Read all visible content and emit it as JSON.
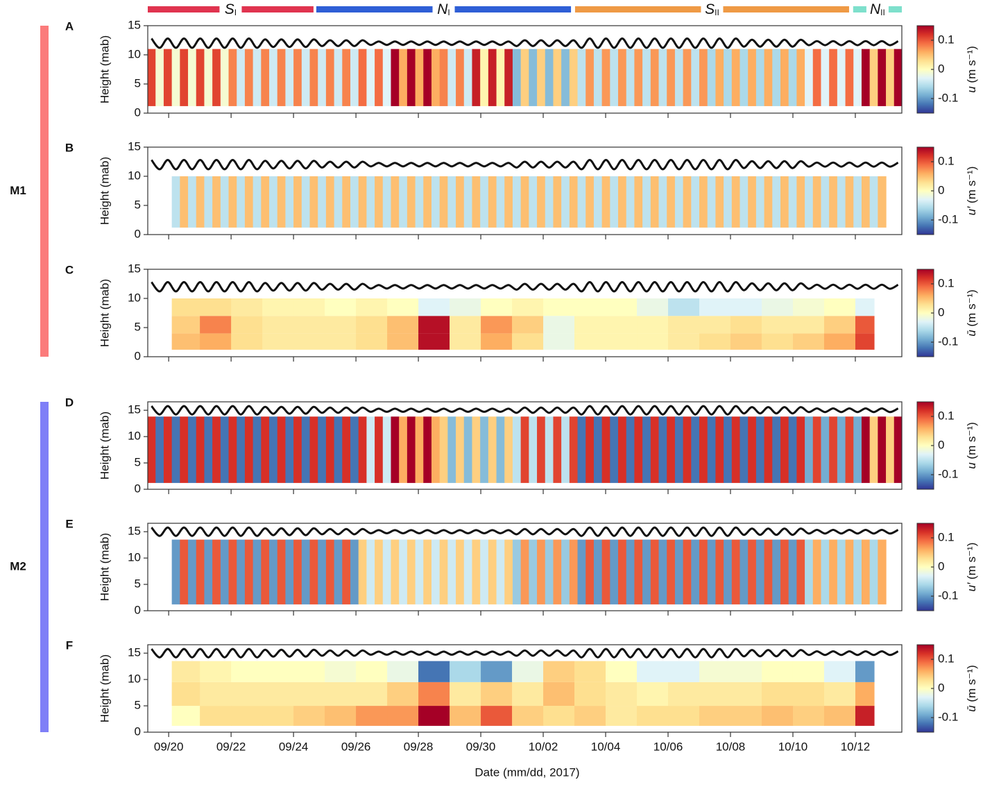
{
  "time": [
    -0.55,
    -0.29,
    -0.03,
    0.23,
    0.49,
    0.75,
    1.01,
    1.27,
    1.53,
    1.79,
    2.05,
    2.31,
    2.57,
    2.83,
    3.09,
    3.35,
    3.61,
    3.87,
    4.13,
    4.39,
    4.65,
    4.91,
    5.17,
    5.43,
    5.69,
    5.95,
    6.21,
    6.47,
    6.73,
    6.99,
    7.25,
    7.51,
    7.77,
    8.03,
    8.29,
    8.55,
    8.81,
    9.07,
    9.33,
    9.59,
    9.85,
    10.11,
    10.37,
    10.63,
    10.89,
    11.15,
    11.41,
    11.67,
    11.93,
    12.19,
    12.45,
    12.71,
    12.97,
    13.23,
    13.49,
    13.75,
    14.01,
    14.27,
    14.53,
    14.79,
    15.05,
    15.31,
    15.57,
    15.83,
    16.09,
    16.35,
    16.61,
    16.87,
    17.13,
    17.39,
    17.65,
    17.91,
    18.17,
    18.43,
    18.69,
    18.95,
    19.21,
    19.47,
    19.73,
    19.99,
    20.25,
    20.51,
    20.77,
    21.03,
    21.29,
    21.55,
    21.81,
    22.07,
    22.33,
    22.59,
    22.85,
    23.11,
    23.37
  ],
  "xlim": [
    -0.67,
    23.49
  ],
  "xticks": [
    {
      "value": 0,
      "label": "09/20"
    },
    {
      "value": 2,
      "label": "09/22"
    },
    {
      "value": 4,
      "label": "09/24"
    },
    {
      "value": 6,
      "label": "09/26"
    },
    {
      "value": 8,
      "label": "09/28"
    },
    {
      "value": 10,
      "label": "09/30"
    },
    {
      "value": 12,
      "label": "10/02"
    },
    {
      "value": 14,
      "label": "10/04"
    },
    {
      "value": 16,
      "label": "10/06"
    },
    {
      "value": 18,
      "label": "10/08"
    },
    {
      "value": 20,
      "label": "10/10"
    },
    {
      "value": 22,
      "label": "10/12"
    }
  ],
  "xlabel": "Date (mm/dd, 2017)",
  "clim": [
    -0.15,
    0.15
  ],
  "cticks": [
    -0.1,
    0,
    0.1
  ],
  "colormap": [
    "#313695",
    "#4575b4",
    "#74add1",
    "#abd9e9",
    "#e0f3f8",
    "#ffffbf",
    "#fee090",
    "#fdae61",
    "#f46d43",
    "#d73027",
    "#a50026"
  ],
  "tide_color": "#111111",
  "phases": [
    {
      "label": "S",
      "sub": "I",
      "start": -0.67,
      "end": 4.64,
      "color": "#e0344f"
    },
    {
      "label": "N",
      "sub": "I",
      "start": 4.73,
      "end": 12.89,
      "color": "#2f5fd6"
    },
    {
      "label": "S",
      "sub": "II",
      "start": 13.02,
      "end": 21.8,
      "color": "#ef9a45"
    },
    {
      "label": "N",
      "sub": "II",
      "start": 21.93,
      "end": 23.49,
      "color": "#7ee0cc"
    }
  ],
  "moorings": [
    {
      "name": "M1",
      "color": "#fb7b7b",
      "label_color": "#e8383e",
      "tide": [
        12.8,
        11.2,
        12.8,
        11.2,
        12.8,
        11.2,
        12.8,
        11.2,
        12.8,
        11.2,
        12.8,
        11.2,
        12.8,
        11.2,
        12.65,
        11.35,
        12.65,
        11.35,
        12.65,
        11.35,
        12.65,
        11.5,
        12.5,
        11.5,
        12.5,
        11.5,
        12.5,
        11.7,
        12.3,
        11.7,
        12.3,
        11.7,
        12.3,
        11.7,
        12.3,
        11.7,
        12.3,
        11.7,
        12.3,
        11.7,
        12.3,
        11.7,
        12.3,
        11.7,
        12.3,
        11.5,
        12.5,
        11.5,
        12.5,
        11.5,
        12.5,
        11.5,
        12.5,
        11.2,
        12.8,
        11.2,
        12.8,
        11.2,
        12.8,
        11.2,
        12.8,
        11.2,
        12.8,
        11.2,
        12.8,
        11.2,
        12.8,
        11.2,
        12.8,
        11.2,
        12.8,
        11.2,
        12.8,
        11.4,
        12.6,
        11.4,
        12.6,
        11.4,
        12.6,
        11.4,
        12.6,
        11.65,
        12.35,
        11.65,
        12.35,
        11.65,
        12.35,
        11.65,
        12.35,
        11.65,
        12.35,
        11.65,
        12.35
      ]
    },
    {
      "name": "M2",
      "color": "#7f7ff7",
      "label_color": "#5a5ae8",
      "tide": [
        15.8,
        14.2,
        15.8,
        14.2,
        15.8,
        14.2,
        15.8,
        14.2,
        15.8,
        14.2,
        15.8,
        14.2,
        15.8,
        14.2,
        15.65,
        14.35,
        15.65,
        14.35,
        15.65,
        14.35,
        15.65,
        14.5,
        15.5,
        14.5,
        15.5,
        14.5,
        15.5,
        14.7,
        15.3,
        14.7,
        15.3,
        14.7,
        15.3,
        14.7,
        15.3,
        14.7,
        15.3,
        14.7,
        15.3,
        14.7,
        15.3,
        14.7,
        15.3,
        14.7,
        15.3,
        14.5,
        15.5,
        14.5,
        15.5,
        14.5,
        15.5,
        14.5,
        15.5,
        14.2,
        15.8,
        14.2,
        15.8,
        14.2,
        15.8,
        14.2,
        15.8,
        14.2,
        15.8,
        14.2,
        15.8,
        14.2,
        15.8,
        14.2,
        15.8,
        14.2,
        15.8,
        14.2,
        15.8,
        14.4,
        15.6,
        14.4,
        15.6,
        14.4,
        15.6,
        14.4,
        15.6,
        14.65,
        15.35,
        14.65,
        15.35,
        14.65,
        15.35,
        14.65,
        15.35,
        14.65,
        15.35,
        14.65,
        15.35
      ]
    }
  ],
  "chart_data": [
    {
      "type": "heatmap",
      "panel": "A",
      "mooring": "M1",
      "ylabel": "Height (mab)",
      "ylim": [
        0,
        15
      ],
      "yticks": [
        0,
        5,
        10,
        15
      ],
      "colorbar_var": "u",
      "colorbar_unit": "(m s⁻¹)",
      "depth": [
        1.2,
        11
      ],
      "values": [
        [
          0.11,
          -0.01,
          0.11,
          -0.01,
          0.11,
          -0.01,
          0.11,
          -0.01,
          0.11,
          -0.01,
          0.08,
          -0.04,
          0.08,
          -0.04,
          0.08,
          -0.04,
          0.08,
          -0.04,
          0.08,
          -0.04,
          0.08,
          -0.04,
          0.08,
          -0.04,
          0.08,
          -0.04,
          0.09,
          -0.03,
          0.09,
          -0.03,
          0.18,
          0.06,
          0.18,
          0.06,
          0.18,
          0.06,
          0.08,
          -0.04,
          0.08,
          -0.04,
          0.13,
          0.01,
          0.13,
          0.01,
          0.13,
          -0.08,
          0.04,
          -0.08,
          0.04,
          -0.08,
          0.04,
          -0.08,
          0.04,
          -0.05,
          0.07,
          -0.05,
          0.07,
          -0.05,
          0.07,
          -0.05,
          0.07,
          -0.05,
          0.07,
          -0.05,
          0.07,
          -0.05,
          0.07,
          -0.05,
          0.07,
          -0.06,
          0.06,
          -0.06,
          0.06,
          -0.06,
          0.06,
          -0.06,
          0.06,
          -0.06,
          0.06,
          -0.06,
          0.06,
          -0.03,
          0.09,
          -0.03,
          0.09,
          -0.03,
          0.09,
          -0.03,
          0.16,
          0.04,
          0.16,
          0.04,
          0.16
        ]
      ]
    },
    {
      "type": "heatmap",
      "panel": "B",
      "mooring": "M1",
      "ylabel": "Height (mab)",
      "ylim": [
        0,
        15
      ],
      "yticks": [
        0,
        5,
        10,
        15
      ],
      "colorbar_var": "u′",
      "colorbar_unit": "(m s⁻¹)",
      "depth": [
        1.2,
        10
      ],
      "values": [
        [
          null,
          null,
          null,
          -0.05,
          0.05,
          -0.05,
          0.05,
          -0.05,
          0.05,
          -0.05,
          0.05,
          -0.05,
          0.05,
          -0.05,
          0.05,
          -0.05,
          0.05,
          -0.05,
          0.05,
          -0.05,
          0.05,
          -0.05,
          0.05,
          -0.05,
          0.05,
          -0.05,
          0.05,
          -0.05,
          0.05,
          -0.05,
          0.05,
          -0.05,
          0.05,
          -0.05,
          0.05,
          -0.05,
          0.05,
          -0.05,
          0.05,
          -0.05,
          0.05,
          -0.05,
          0.05,
          -0.05,
          0.05,
          -0.05,
          0.05,
          -0.05,
          0.05,
          -0.05,
          0.05,
          -0.05,
          0.05,
          -0.05,
          0.05,
          -0.05,
          0.05,
          -0.05,
          0.05,
          -0.05,
          0.05,
          -0.05,
          0.05,
          -0.05,
          0.05,
          -0.05,
          0.05,
          -0.05,
          0.05,
          -0.05,
          0.05,
          -0.05,
          0.05,
          -0.05,
          0.05,
          -0.05,
          0.05,
          -0.05,
          0.05,
          -0.05,
          0.05,
          -0.05,
          0.05,
          -0.05,
          0.05,
          -0.05,
          0.05,
          -0.05,
          0.05,
          -0.05,
          0.05,
          null,
          null
        ]
      ]
    },
    {
      "type": "heatmap",
      "panel": "C",
      "mooring": "M1",
      "ylabel": "Height (mab)",
      "ylim": [
        0,
        15
      ],
      "yticks": [
        0,
        5,
        10,
        15
      ],
      "colorbar_var": "ū",
      "colorbar_unit": "(m s⁻¹)",
      "depth": [
        1.2,
        4,
        7,
        10
      ],
      "x_edges": [
        0.1,
        1,
        2,
        3,
        4,
        5,
        6,
        7,
        8,
        9,
        10,
        11,
        12,
        13,
        14,
        15,
        16,
        17,
        18,
        19,
        20,
        21,
        22,
        22.6
      ],
      "values": [
        [
          0.05,
          0.06,
          0.03,
          0.02,
          0.02,
          0.02,
          0.03,
          0.05,
          0.14,
          0.02,
          0.06,
          0.03,
          -0.02,
          0.01,
          0.01,
          0.01,
          0.02,
          0.03,
          0.04,
          0.03,
          0.04,
          0.06,
          0.11
        ],
        [
          0.04,
          0.08,
          0.03,
          0.02,
          0.02,
          0.02,
          0.03,
          0.05,
          0.14,
          0.02,
          0.07,
          0.04,
          -0.02,
          0.01,
          0.01,
          0.01,
          0.02,
          0.02,
          0.03,
          0.02,
          0.02,
          0.04,
          0.1
        ],
        [
          0.03,
          0.03,
          0.02,
          0.01,
          0.01,
          0.0,
          0.01,
          0.0,
          -0.03,
          -0.02,
          0.0,
          0.01,
          0.0,
          0.0,
          0.0,
          -0.02,
          -0.05,
          -0.03,
          -0.03,
          -0.02,
          -0.01,
          0.0,
          -0.03
        ]
      ]
    },
    {
      "type": "heatmap",
      "panel": "D",
      "mooring": "M2",
      "ylabel": "Height (mab)",
      "ylim": [
        0,
        16.6
      ],
      "yticks": [
        0,
        5,
        10,
        15
      ],
      "colorbar_var": "u",
      "colorbar_unit": "(m s⁻¹)",
      "depth": [
        1.2,
        13.8
      ],
      "values": [
        [
          0.12,
          -0.12,
          0.12,
          -0.12,
          0.12,
          -0.12,
          0.12,
          -0.12,
          0.12,
          -0.12,
          0.12,
          -0.12,
          0.12,
          -0.12,
          0.12,
          -0.12,
          0.12,
          -0.12,
          0.12,
          -0.12,
          0.12,
          -0.12,
          0.12,
          -0.12,
          0.12,
          -0.12,
          0.12,
          -0.04,
          0.12,
          -0.04,
          0.18,
          0.06,
          0.18,
          0.06,
          0.18,
          0.06,
          0.04,
          -0.08,
          0.04,
          -0.08,
          0.04,
          -0.08,
          0.04,
          -0.08,
          0.04,
          -0.05,
          0.11,
          -0.05,
          0.11,
          -0.05,
          0.11,
          -0.05,
          0.11,
          -0.12,
          0.12,
          -0.12,
          0.12,
          -0.12,
          0.12,
          -0.12,
          0.12,
          -0.12,
          0.12,
          -0.12,
          0.12,
          -0.12,
          0.12,
          -0.12,
          0.12,
          -0.12,
          0.12,
          -0.12,
          0.12,
          -0.12,
          0.12,
          -0.12,
          0.12,
          -0.12,
          0.12,
          -0.12,
          0.12,
          -0.09,
          0.11,
          -0.09,
          0.11,
          -0.09,
          0.11,
          -0.09,
          0.16,
          0.04,
          0.16,
          0.04,
          0.16
        ]
      ]
    },
    {
      "type": "heatmap",
      "panel": "E",
      "mooring": "M2",
      "ylabel": "Height (mab)",
      "ylim": [
        0,
        16.6
      ],
      "yticks": [
        0,
        5,
        10,
        15
      ],
      "colorbar_var": "u′",
      "colorbar_unit": "(m s⁻¹)",
      "depth": [
        1.2,
        13.5
      ],
      "values": [
        [
          null,
          null,
          null,
          -0.1,
          0.1,
          -0.1,
          0.1,
          -0.1,
          0.1,
          -0.1,
          0.1,
          -0.1,
          0.1,
          -0.1,
          0.1,
          -0.1,
          0.1,
          -0.1,
          0.1,
          -0.1,
          0.1,
          -0.1,
          0.1,
          -0.1,
          0.1,
          -0.1,
          0.04,
          -0.04,
          0.04,
          -0.04,
          0.04,
          -0.04,
          0.04,
          -0.04,
          0.04,
          -0.04,
          0.04,
          -0.04,
          0.04,
          -0.04,
          0.04,
          -0.04,
          0.04,
          -0.04,
          0.04,
          -0.07,
          0.07,
          -0.07,
          0.07,
          -0.07,
          0.07,
          -0.07,
          0.07,
          -0.1,
          0.1,
          -0.1,
          0.1,
          -0.1,
          0.1,
          -0.1,
          0.1,
          -0.1,
          0.1,
          -0.1,
          0.1,
          -0.1,
          0.1,
          -0.1,
          0.1,
          -0.1,
          0.1,
          -0.1,
          0.1,
          -0.1,
          0.1,
          -0.1,
          0.1,
          -0.1,
          0.1,
          -0.1,
          0.1,
          -0.06,
          0.06,
          -0.06,
          0.06,
          -0.06,
          0.06,
          -0.06,
          0.06,
          -0.06,
          0.06,
          null,
          null
        ]
      ]
    },
    {
      "type": "heatmap",
      "panel": "F",
      "mooring": "M2",
      "ylabel": "Height (mab)",
      "ylim": [
        0,
        16.6
      ],
      "yticks": [
        0,
        5,
        10,
        15
      ],
      "colorbar_var": "ū",
      "colorbar_unit": "(m s⁻¹)",
      "depth": [
        1.2,
        5,
        9.5,
        13.5
      ],
      "x_edges": [
        0.1,
        1,
        2,
        3,
        4,
        5,
        6,
        7,
        8,
        9,
        10,
        11,
        12,
        13,
        14,
        15,
        16,
        17,
        18,
        19,
        20,
        21,
        22,
        22.6
      ],
      "values": [
        [
          0.0,
          0.03,
          0.03,
          0.03,
          0.04,
          0.05,
          0.07,
          0.07,
          0.15,
          0.05,
          0.1,
          0.04,
          0.03,
          0.04,
          0.02,
          0.03,
          0.03,
          0.04,
          0.04,
          0.05,
          0.04,
          0.05,
          0.13
        ],
        [
          0.03,
          0.02,
          0.02,
          0.02,
          0.02,
          0.02,
          0.02,
          0.04,
          0.08,
          0.02,
          0.04,
          0.02,
          0.05,
          0.03,
          0.02,
          0.01,
          0.02,
          0.02,
          0.02,
          0.03,
          0.03,
          0.02,
          0.06
        ],
        [
          0.02,
          0.01,
          0.0,
          0.0,
          0.0,
          -0.01,
          0.0,
          -0.02,
          -0.12,
          -0.06,
          -0.1,
          -0.02,
          0.04,
          0.03,
          0.0,
          -0.03,
          -0.03,
          -0.01,
          -0.01,
          0.0,
          0.0,
          -0.03,
          -0.1
        ]
      ]
    }
  ]
}
